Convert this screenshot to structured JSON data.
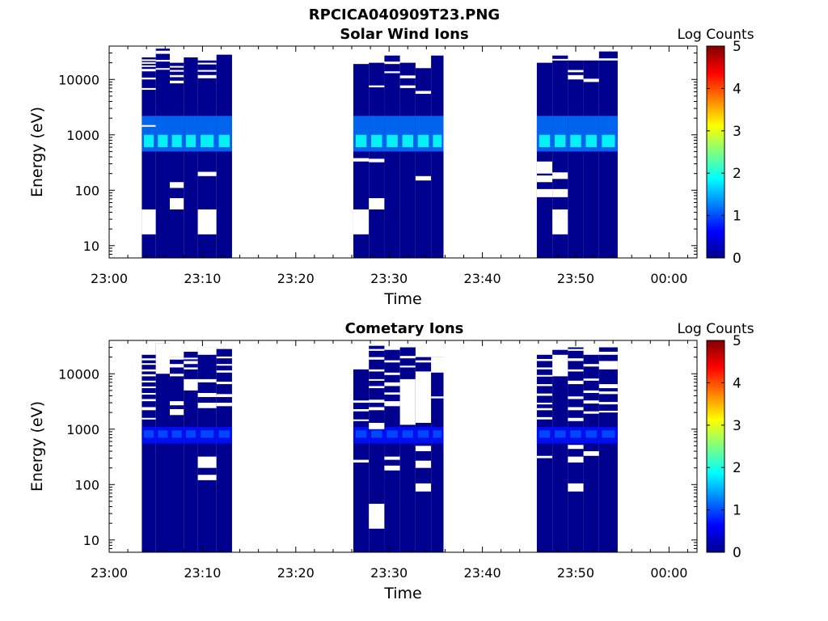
{
  "figure_title": "RPCICA040909T23.PNG",
  "chart_data": [
    {
      "type": "heatmap",
      "title": "Solar Wind Ions",
      "xlabel": "Time",
      "ylabel": "Energy (eV)",
      "yscale": "log",
      "xlim": [
        "23:00",
        "00:03"
      ],
      "ylim": [
        6,
        40000
      ],
      "x_ticks": [
        "23:00",
        "23:10",
        "23:20",
        "23:30",
        "23:40",
        "23:50",
        "00:00"
      ],
      "y_ticks": [
        "10",
        "100",
        "1000",
        "10000"
      ],
      "colorbar": {
        "label": "Log Counts",
        "range": [
          0,
          5
        ],
        "ticks": [
          "0",
          "1",
          "2",
          "3",
          "4",
          "5"
        ],
        "colormap": "jet"
      },
      "columns": [
        {
          "t0": "23:03:30",
          "t1": "23:05:00",
          "ymax": 25000,
          "gaps": [
            [
              16,
              45
            ],
            [
              1400,
              1500
            ],
            [
              6500,
              7000
            ],
            [
              10000,
              10800
            ],
            [
              14000,
              15500
            ],
            [
              17000,
              18000
            ],
            [
              19500,
              20500
            ],
            [
              22000,
              23000
            ]
          ]
        },
        {
          "t0": "23:05:00",
          "t1": "23:06:30",
          "ymax": 36000,
          "gaps": [
            [
              15000,
              16000
            ],
            [
              21000,
              22500
            ],
            [
              29000,
              33000
            ]
          ]
        },
        {
          "t0": "23:06:30",
          "t1": "23:08:00",
          "ymax": 20000,
          "gaps": [
            [
              45,
              72
            ],
            [
              110,
              140
            ],
            [
              8500,
              9500
            ],
            [
              11000,
              12000
            ],
            [
              13800,
              14800
            ],
            [
              16500,
              17500
            ]
          ]
        },
        {
          "t0": "23:08:00",
          "t1": "23:09:30",
          "ymax": 25000,
          "gaps": []
        },
        {
          "t0": "23:09:30",
          "t1": "23:11:30",
          "ymax": 22000,
          "gaps": [
            [
              16,
              45
            ],
            [
              180,
              215
            ],
            [
              10500,
              12000
            ],
            [
              13800,
              14800
            ],
            [
              19000,
              20000
            ]
          ]
        },
        {
          "t0": "23:11:30",
          "t1": "23:13:10",
          "ymax": 28000,
          "gaps": []
        },
        {
          "t0": "23:26:10",
          "t1": "23:27:50",
          "ymax": 19000,
          "gaps": [
            [
              16,
              45
            ],
            [
              330,
              380
            ],
            [
              22000,
              25000
            ],
            [
              29000,
              33000
            ]
          ]
        },
        {
          "t0": "23:27:50",
          "t1": "23:29:30",
          "ymax": 20000,
          "gaps": [
            [
              45,
              72
            ],
            [
              320,
              370
            ],
            [
              7200,
              7800
            ],
            [
              22000,
              23000
            ]
          ]
        },
        {
          "t0": "23:29:30",
          "t1": "23:31:10",
          "ymax": 27000,
          "gaps": [
            [
              13000,
              14000
            ],
            [
              19000,
              21000
            ]
          ]
        },
        {
          "t0": "23:31:10",
          "t1": "23:32:50",
          "ymax": 20000,
          "gaps": [
            [
              7000,
              7800
            ],
            [
              10500,
              11800
            ],
            [
              22000,
              25000
            ]
          ]
        },
        {
          "t0": "23:32:50",
          "t1": "23:34:30",
          "ymax": 16000,
          "gaps": [
            [
              150,
              180
            ],
            [
              5500,
              6200
            ],
            [
              36000,
              40000
            ]
          ]
        },
        {
          "t0": "23:34:30",
          "t1": "23:35:50",
          "ymax": 27000,
          "gaps": [
            [
              29000,
              31000
            ]
          ]
        },
        {
          "t0": "23:45:50",
          "t1": "23:47:30",
          "ymax": 20000,
          "gaps": [
            [
              75,
              105
            ],
            [
              140,
              185
            ],
            [
              200,
              330
            ]
          ]
        },
        {
          "t0": "23:47:30",
          "t1": "23:49:10",
          "ymax": 27000,
          "gaps": [
            [
              16,
              45
            ],
            [
              75,
              105
            ],
            [
              160,
              210
            ],
            [
              22000,
              23500
            ]
          ]
        },
        {
          "t0": "23:49:10",
          "t1": "23:50:50",
          "ymax": 22000,
          "gaps": [
            [
              10000,
              12000
            ],
            [
              13500,
              14800
            ],
            [
              26000,
              31000
            ]
          ]
        },
        {
          "t0": "23:50:50",
          "t1": "23:52:30",
          "ymax": 22000,
          "gaps": [
            [
              9000,
              10300
            ],
            [
              36000,
              40000
            ]
          ]
        },
        {
          "t0": "23:52:30",
          "t1": "23:54:30",
          "ymax": 32000,
          "gaps": [
            [
              22000,
              24000
            ]
          ]
        }
      ],
      "enhanced_band": {
        "emin": 500,
        "emax": 2200,
        "peak_emin": 600,
        "peak_emax": 1000,
        "peak_level": 1.9,
        "band_level": 1.2
      }
    },
    {
      "type": "heatmap",
      "title": "Cometary Ions",
      "xlabel": "Time",
      "ylabel": "Energy (eV)",
      "yscale": "log",
      "xlim": [
        "23:00",
        "00:03"
      ],
      "ylim": [
        6,
        40000
      ],
      "x_ticks": [
        "23:00",
        "23:10",
        "23:20",
        "23:30",
        "23:40",
        "23:50",
        "00:00"
      ],
      "y_ticks": [
        "10",
        "100",
        "1000",
        "10000"
      ],
      "colorbar": {
        "label": "Log Counts",
        "range": [
          0,
          5
        ],
        "ticks": [
          "0",
          "1",
          "2",
          "3",
          "4",
          "5"
        ],
        "colormap": "jet"
      },
      "columns": [
        {
          "t0": "23:03:30",
          "t1": "23:05:00",
          "ymax": 22000,
          "gaps": [
            [
              1500,
              1600
            ],
            [
              2200,
              2500
            ],
            [
              3200,
              3500
            ],
            [
              4200,
              4500
            ],
            [
              5500,
              5900
            ],
            [
              7000,
              7500
            ],
            [
              9000,
              9800
            ],
            [
              11000,
              12000
            ],
            [
              14500,
              15500
            ],
            [
              17500,
              19000
            ]
          ]
        },
        {
          "t0": "23:05:00",
          "t1": "23:06:30",
          "ymax": 36000,
          "gaps": [
            [
              10000,
              36000
            ]
          ]
        },
        {
          "t0": "23:06:30",
          "t1": "23:08:00",
          "ymax": 20000,
          "gaps": [
            [
              1800,
              2300
            ],
            [
              2700,
              3200
            ],
            [
              9000,
              10000
            ],
            [
              13000,
              15000
            ],
            [
              18000,
              20000
            ]
          ]
        },
        {
          "t0": "23:08:00",
          "t1": "23:09:30",
          "ymax": 25000,
          "gaps": [
            [
              5000,
              8000
            ],
            [
              12000,
              13000
            ],
            [
              15000,
              17000
            ],
            [
              18500,
              19500
            ]
          ]
        },
        {
          "t0": "23:09:30",
          "t1": "23:11:30",
          "ymax": 30000,
          "gaps": [
            [
              120,
              150
            ],
            [
              200,
              320
            ],
            [
              2400,
              3000
            ],
            [
              3800,
              4500
            ],
            [
              7000,
              8000
            ],
            [
              22000,
              30000
            ]
          ]
        },
        {
          "t0": "23:11:30",
          "t1": "23:13:10",
          "ymax": 28000,
          "gaps": [
            [
              2600,
              3000
            ],
            [
              3800,
              4300
            ],
            [
              6500,
              7200
            ],
            [
              10500,
              11500
            ],
            [
              14000,
              15000
            ],
            [
              19000,
              20500
            ]
          ]
        },
        {
          "t0": "23:26:10",
          "t1": "23:27:50",
          "ymax": 12000,
          "gaps": [
            [
              250,
              280
            ],
            [
              1400,
              1500
            ],
            [
              2100,
              2300
            ],
            [
              3000,
              3300
            ]
          ]
        },
        {
          "t0": "23:27:50",
          "t1": "23:29:30",
          "ymax": 32000,
          "gaps": [
            [
              16,
              45
            ],
            [
              1000,
              1300
            ],
            [
              2200,
              2500
            ],
            [
              3000,
              3400
            ],
            [
              5500,
              6000
            ],
            [
              7500,
              8000
            ],
            [
              11000,
              12000
            ],
            [
              18000,
              20000
            ],
            [
              26000,
              28000
            ]
          ]
        },
        {
          "t0": "23:29:30",
          "t1": "23:31:10",
          "ymax": 27000,
          "gaps": [
            [
              180,
              220
            ],
            [
              280,
              320
            ],
            [
              2600,
              3200
            ],
            [
              4200,
              4600
            ],
            [
              6000,
              7000
            ],
            [
              9500,
              10500
            ],
            [
              16000,
              17500
            ]
          ]
        },
        {
          "t0": "23:31:10",
          "t1": "23:32:50",
          "ymax": 30000,
          "gaps": [
            [
              1200,
              8000
            ],
            [
              13000,
              14000
            ],
            [
              19000,
              21000
            ]
          ]
        },
        {
          "t0": "23:32:50",
          "t1": "23:34:30",
          "ymax": 20000,
          "gaps": [
            [
              75,
              105
            ],
            [
              200,
              270
            ],
            [
              400,
              500
            ],
            [
              1300,
              11000
            ],
            [
              16000,
              17500
            ]
          ]
        },
        {
          "t0": "23:34:30",
          "t1": "23:35:50",
          "ymax": 20000,
          "gaps": [
            [
              3600,
              3900
            ],
            [
              10500,
              20000
            ]
          ]
        },
        {
          "t0": "23:45:50",
          "t1": "23:47:30",
          "ymax": 22000,
          "gaps": [
            [
              300,
              330
            ],
            [
              1500,
              1650
            ],
            [
              2200,
              2400
            ],
            [
              2800,
              3000
            ],
            [
              4000,
              4400
            ],
            [
              6000,
              6500
            ],
            [
              9000,
              9500
            ],
            [
              12000,
              13000
            ],
            [
              17000,
              18500
            ]
          ]
        },
        {
          "t0": "23:47:30",
          "t1": "23:49:10",
          "ymax": 27000,
          "gaps": [
            [
              9000,
              22000
            ]
          ]
        },
        {
          "t0": "23:49:10",
          "t1": "23:50:50",
          "ymax": 30000,
          "gaps": [
            [
              75,
              105
            ],
            [
              250,
              320
            ],
            [
              440,
              520
            ],
            [
              1400,
              1600
            ],
            [
              2200,
              2500
            ],
            [
              3500,
              3900
            ],
            [
              6500,
              7500
            ],
            [
              11000,
              12000
            ],
            [
              17000,
              19000
            ],
            [
              26000,
              28000
            ]
          ]
        },
        {
          "t0": "23:50:50",
          "t1": "23:52:30",
          "ymax": 22000,
          "gaps": [
            [
              330,
              400
            ],
            [
              1900,
              2100
            ],
            [
              2900,
              3300
            ],
            [
              4500,
              5000
            ],
            [
              7500,
              8200
            ],
            [
              13500,
              15000
            ]
          ]
        },
        {
          "t0": "23:52:30",
          "t1": "23:54:30",
          "ymax": 30000,
          "gaps": [
            [
              2000,
              2150
            ],
            [
              2800,
              3100
            ],
            [
              4300,
              4800
            ],
            [
              5500,
              6500
            ],
            [
              12000,
              17000
            ],
            [
              22000,
              25000
            ]
          ]
        }
      ],
      "enhanced_band": {
        "emin": 550,
        "emax": 1100,
        "peak_emin": 700,
        "peak_emax": 950,
        "peak_level": 1.0,
        "band_level": 0.7
      }
    }
  ]
}
